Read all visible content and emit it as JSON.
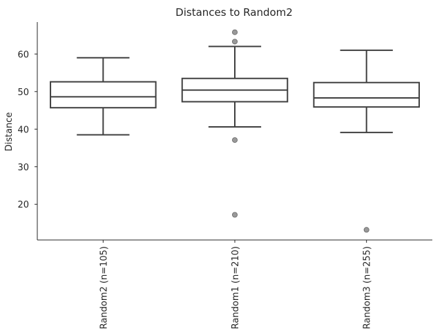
{
  "chart_data": {
    "type": "box",
    "title": "Distances to Random2",
    "xlabel": "",
    "ylabel": "Distance",
    "ylim": [
      10.5,
      68.5
    ],
    "yticks": [
      20,
      30,
      40,
      50,
      60
    ],
    "grid": false,
    "colors": {
      "box_edge": "#3f3f3f",
      "outlier_fill": "#999999",
      "outlier_edge": "#666666",
      "axis": "#262626"
    },
    "categories": [
      "Random2 (n=105)",
      "Random1 (n=210)",
      "Random3 (n=255)"
    ],
    "boxes": [
      {
        "label": "Random2 (n=105)",
        "whisker_low": 38.5,
        "q1": 45.7,
        "median": 48.6,
        "q3": 52.6,
        "whisker_high": 59.0,
        "outliers": []
      },
      {
        "label": "Random1 (n=210)",
        "whisker_low": 40.6,
        "q1": 47.3,
        "median": 50.4,
        "q3": 53.5,
        "whisker_high": 62.0,
        "outliers": [
          65.8,
          63.3,
          37.1,
          17.2
        ]
      },
      {
        "label": "Random3 (n=255)",
        "whisker_low": 39.1,
        "q1": 45.9,
        "median": 48.3,
        "q3": 52.4,
        "whisker_high": 61.0,
        "outliers": [
          13.2
        ]
      }
    ]
  }
}
